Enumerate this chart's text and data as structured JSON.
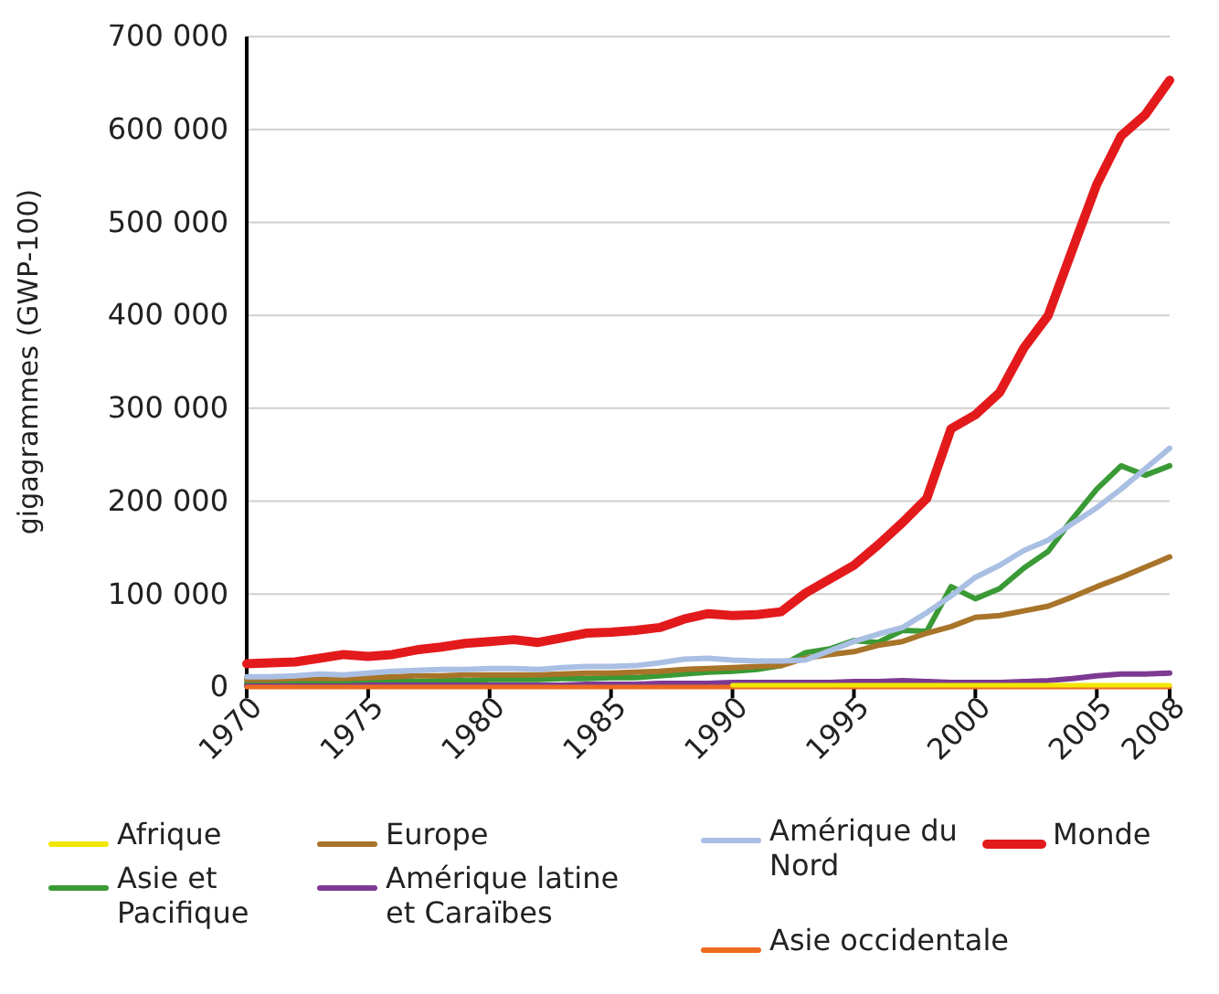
{
  "chart_data": {
    "type": "line",
    "ylabel": "gigagrammes  (GWP-100)",
    "x": [
      1970,
      1971,
      1972,
      1973,
      1974,
      1975,
      1976,
      1977,
      1978,
      1979,
      1980,
      1981,
      1982,
      1983,
      1984,
      1985,
      1986,
      1987,
      1988,
      1989,
      1990,
      1991,
      1992,
      1993,
      1994,
      1995,
      1996,
      1997,
      1998,
      1999,
      2000,
      2001,
      2002,
      2003,
      2004,
      2005,
      2006,
      2007,
      2008
    ],
    "xlim": [
      1970,
      2008
    ],
    "xticks": [
      1970,
      1975,
      1980,
      1985,
      1990,
      1995,
      2000,
      2005,
      2008
    ],
    "ylim": [
      0,
      700000
    ],
    "yticks": [
      {
        "value": 0,
        "label": "0"
      },
      {
        "value": 100000,
        "label": "100 000"
      },
      {
        "value": 200000,
        "label": "200 000"
      },
      {
        "value": 300000,
        "label": "300 000"
      },
      {
        "value": 400000,
        "label": "400 000"
      },
      {
        "value": 500000,
        "label": "500 000"
      },
      {
        "value": 600000,
        "label": "600 000"
      },
      {
        "value": 700000,
        "label": "700 000"
      }
    ],
    "grid": "y",
    "legend": "bottom",
    "marker": "none",
    "line_style": "solid",
    "series": [
      {
        "name": "Afrique",
        "color": "#f2e600",
        "values": [
          null,
          null,
          null,
          null,
          null,
          null,
          null,
          null,
          null,
          null,
          null,
          null,
          null,
          null,
          null,
          null,
          null,
          null,
          null,
          null,
          2000,
          2000,
          2000,
          2000,
          2000,
          2000,
          2000,
          2000,
          2000,
          2000,
          2000,
          2000,
          2000,
          2000,
          2000,
          2000,
          2000,
          2000,
          2000
        ]
      },
      {
        "name": "Asie et Pacifique",
        "color": "#3a9a35",
        "values": [
          4000,
          4000,
          5000,
          5000,
          5000,
          5000,
          6000,
          6000,
          7000,
          7000,
          8000,
          8000,
          8000,
          9000,
          9000,
          10000,
          10000,
          12000,
          14000,
          16000,
          17000,
          19000,
          23000,
          37000,
          41000,
          50000,
          48000,
          61000,
          60000,
          108000,
          95000,
          106000,
          128000,
          146000,
          181000,
          213000,
          238000,
          228000,
          238000
        ]
      },
      {
        "name": "Europe",
        "color": "#a8742a",
        "values": [
          8000,
          8000,
          9000,
          9000,
          9000,
          10000,
          11000,
          12000,
          12000,
          13000,
          13000,
          13000,
          13000,
          14000,
          15000,
          15000,
          16000,
          17000,
          19000,
          20000,
          21000,
          22000,
          23000,
          31000,
          35000,
          38000,
          45000,
          49000,
          58000,
          65000,
          75000,
          77000,
          82000,
          87000,
          97000,
          108000,
          118000,
          129000,
          140000
        ]
      },
      {
        "name": "Amérique latine et Caraïbes",
        "color": "#7d3a93",
        "values": [
          1000,
          1000,
          1000,
          1000,
          1000,
          2000,
          2000,
          2000,
          2000,
          2000,
          2000,
          2000,
          2000,
          2000,
          3000,
          3000,
          3000,
          4000,
          4000,
          4000,
          5000,
          5000,
          5000,
          5000,
          5000,
          6000,
          6000,
          7000,
          6000,
          5000,
          5000,
          5000,
          6000,
          7000,
          9000,
          12000,
          14000,
          14000,
          15000
        ]
      },
      {
        "name": "Amérique du Nord",
        "color": "#a9bfe3",
        "values": [
          11000,
          11000,
          12000,
          14000,
          13000,
          15000,
          17000,
          18000,
          19000,
          19000,
          20000,
          20000,
          19000,
          21000,
          22000,
          22000,
          23000,
          26000,
          30000,
          31000,
          29000,
          28000,
          28000,
          29000,
          39000,
          49000,
          57000,
          64000,
          80000,
          98000,
          118000,
          131000,
          147000,
          158000,
          176000,
          193000,
          213000,
          235000,
          257000
        ]
      },
      {
        "name": "Asie occidentale",
        "color": "#ee6a1f",
        "values": [
          0,
          0,
          0,
          0,
          0,
          0,
          0,
          0,
          0,
          0,
          0,
          0,
          0,
          0,
          0,
          0,
          0,
          0,
          0,
          0,
          0,
          0,
          0,
          0,
          0,
          0,
          0,
          0,
          0,
          0,
          0,
          0,
          0,
          0,
          0,
          0,
          0,
          0,
          0
        ]
      },
      {
        "name": "Monde",
        "color": "#e31a1c",
        "values": [
          25000,
          26000,
          27000,
          31000,
          35000,
          33000,
          35000,
          40000,
          43000,
          47000,
          49000,
          51000,
          48000,
          53000,
          58000,
          59000,
          61000,
          64000,
          73000,
          79000,
          77000,
          78000,
          81000,
          101000,
          116000,
          131000,
          153000,
          177000,
          203000,
          278000,
          293000,
          317000,
          365000,
          400000,
          471000,
          541000,
          593000,
          616000,
          653000
        ]
      }
    ]
  }
}
